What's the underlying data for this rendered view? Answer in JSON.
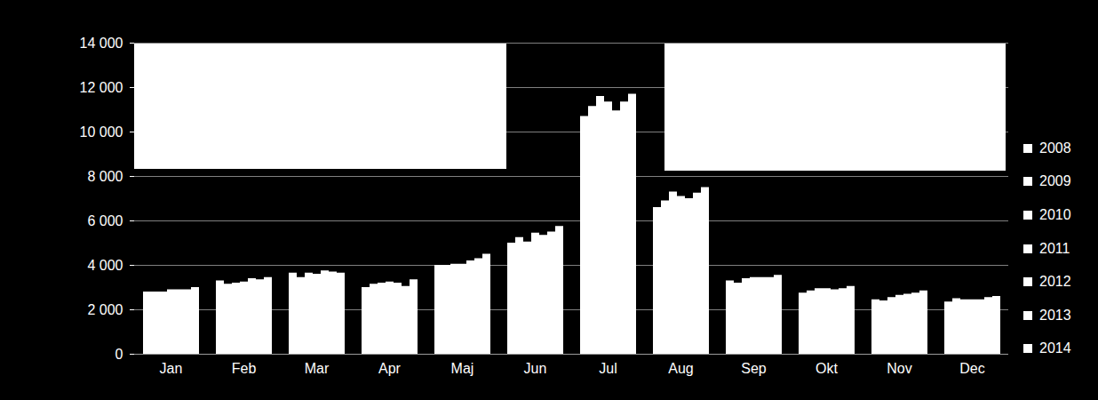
{
  "chart_data": {
    "type": "bar",
    "categories": [
      "Jan",
      "Feb",
      "Mar",
      "Apr",
      "Maj",
      "Jun",
      "Jul",
      "Aug",
      "Sep",
      "Okt",
      "Nov",
      "Dec"
    ],
    "series": [
      {
        "name": "2008",
        "color": "#ffffff",
        "values": [
          2800,
          3300,
          3650,
          3000,
          4000,
          5000,
          10700,
          6600,
          3300,
          2750,
          2450,
          2350
        ]
      },
      {
        "name": "2009",
        "color": "#ffffff",
        "values": [
          2800,
          3150,
          3450,
          3150,
          4000,
          5250,
          11150,
          6900,
          3200,
          2850,
          2400,
          2500
        ]
      },
      {
        "name": "2010",
        "color": "#ffffff",
        "values": [
          2800,
          3200,
          3650,
          3200,
          4050,
          5050,
          11600,
          7300,
          3400,
          2950,
          2550,
          2450
        ]
      },
      {
        "name": "2011",
        "color": "#ffffff",
        "values": [
          2900,
          3250,
          3600,
          3250,
          4050,
          5450,
          11350,
          7100,
          3450,
          2950,
          2650,
          2450
        ]
      },
      {
        "name": "2012",
        "color": "#ffffff",
        "values": [
          2900,
          3400,
          3750,
          3200,
          4200,
          5350,
          10950,
          7000,
          3450,
          2900,
          2700,
          2450
        ]
      },
      {
        "name": "2013",
        "color": "#ffffff",
        "values": [
          2900,
          3350,
          3700,
          3050,
          4300,
          5500,
          11350,
          7250,
          3450,
          2950,
          2750,
          2550
        ]
      },
      {
        "name": "2014",
        "color": "#ffffff",
        "values": [
          3000,
          3450,
          3650,
          3350,
          4500,
          5750,
          11700,
          7500,
          3550,
          3050,
          2850,
          2600
        ]
      }
    ],
    "ylim": [
      0,
      14000
    ],
    "yticks": [
      0,
      {
        "value": 2000,
        "label": "2 000"
      },
      {
        "value": 4000,
        "label": "4 000"
      },
      {
        "value": 6000,
        "label": "6 000"
      },
      {
        "value": 8000,
        "label": "8 000"
      },
      {
        "value": 10000,
        "label": "10 000"
      },
      {
        "value": 12000,
        "label": "12 000"
      },
      {
        "value": 14000,
        "label": "14 000"
      }
    ],
    "grid": true,
    "legend": "right"
  }
}
